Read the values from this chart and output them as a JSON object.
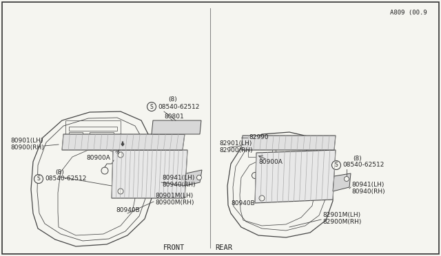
{
  "background_color": "#f5f5f0",
  "border_color": "#333333",
  "line_color": "#444444",
  "text_color": "#222222",
  "figure_note": "A809 (00.9",
  "front_label": "FRONT",
  "rear_label": "REAR"
}
